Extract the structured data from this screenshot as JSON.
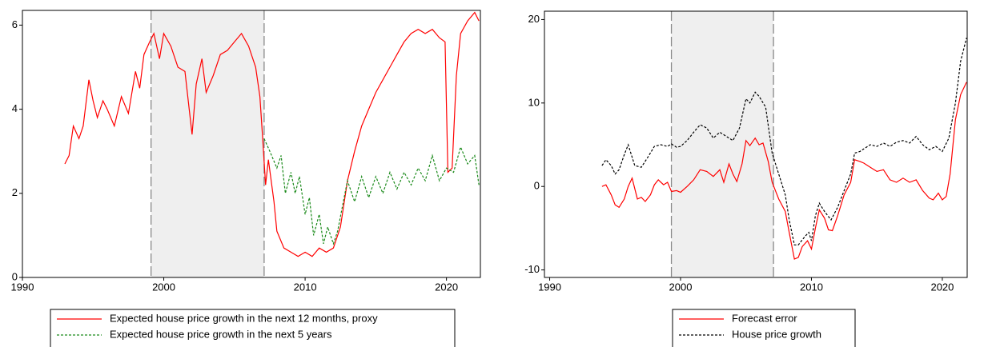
{
  "chart_data": [
    {
      "type": "line",
      "legend": "bottom",
      "shade_color": "#efefef",
      "xlim": [
        1990,
        2022.4
      ],
      "ylim": [
        0,
        6.35
      ],
      "xticks": [
        1990,
        2000,
        2010,
        2020
      ],
      "yticks": [
        0,
        2,
        4,
        6
      ],
      "shaded_region": [
        1999.1,
        2007.1
      ],
      "series": [
        {
          "name": "Expected house price growth in the next 12 months, proxy",
          "color": "#ff0000",
          "dashed": false,
          "x": [
            1993.0,
            1993.3,
            1993.6,
            1994.0,
            1994.3,
            1994.7,
            1995.0,
            1995.3,
            1995.7,
            1996.0,
            1996.5,
            1997.0,
            1997.5,
            1998.0,
            1998.3,
            1998.6,
            1999.0,
            1999.3,
            1999.7,
            2000.0,
            2000.5,
            2001.0,
            2001.5,
            2001.8,
            2002.0,
            2002.3,
            2002.7,
            2003.0,
            2003.5,
            2004.0,
            2004.5,
            2005.0,
            2005.5,
            2006.0,
            2006.5,
            2006.8,
            2007.0,
            2007.2,
            2007.4,
            2007.8,
            2008.0,
            2008.5,
            2009.0,
            2009.5,
            2010.0,
            2010.5,
            2011.0,
            2011.5,
            2012.0,
            2012.5,
            2013.0,
            2013.5,
            2014.0,
            2014.5,
            2015.0,
            2015.5,
            2016.0,
            2016.5,
            2017.0,
            2017.5,
            2018.0,
            2018.5,
            2019.0,
            2019.5,
            2019.9,
            2020.1,
            2020.4,
            2020.7,
            2021.0,
            2021.5,
            2022.0,
            2022.3
          ],
          "values": [
            2.7,
            2.9,
            3.6,
            3.3,
            3.6,
            4.7,
            4.2,
            3.8,
            4.2,
            4.0,
            3.6,
            4.3,
            3.9,
            4.9,
            4.5,
            5.3,
            5.6,
            5.8,
            5.2,
            5.8,
            5.5,
            5.0,
            4.9,
            4.0,
            3.4,
            4.6,
            5.2,
            4.4,
            4.8,
            5.3,
            5.4,
            5.6,
            5.8,
            5.5,
            5.0,
            4.3,
            3.3,
            2.2,
            2.8,
            1.8,
            1.1,
            0.7,
            0.6,
            0.5,
            0.6,
            0.5,
            0.7,
            0.6,
            0.7,
            1.2,
            2.3,
            3.0,
            3.6,
            4.0,
            4.4,
            4.7,
            5.0,
            5.3,
            5.6,
            5.8,
            5.9,
            5.8,
            5.9,
            5.7,
            5.6,
            2.5,
            2.6,
            4.8,
            5.8,
            6.1,
            6.3,
            6.1
          ]
        },
        {
          "name": "Expected house price growth in the next 5 years",
          "color": "#1a8a1a",
          "dashed": true,
          "x": [
            2007.1,
            2007.5,
            2008.0,
            2008.3,
            2008.6,
            2009.0,
            2009.3,
            2009.6,
            2010.0,
            2010.3,
            2010.6,
            2011.0,
            2011.3,
            2011.6,
            2012.0,
            2012.3,
            2012.7,
            2013.0,
            2013.5,
            2014.0,
            2014.5,
            2015.0,
            2015.5,
            2016.0,
            2016.5,
            2017.0,
            2017.5,
            2018.0,
            2018.5,
            2019.0,
            2019.5,
            2020.0,
            2020.5,
            2021.0,
            2021.5,
            2022.0,
            2022.3
          ],
          "values": [
            3.3,
            3.0,
            2.6,
            2.9,
            2.0,
            2.5,
            2.0,
            2.4,
            1.5,
            1.9,
            1.0,
            1.5,
            0.8,
            1.2,
            0.8,
            1.1,
            1.8,
            2.3,
            1.8,
            2.4,
            1.9,
            2.4,
            2.0,
            2.5,
            2.1,
            2.5,
            2.2,
            2.6,
            2.3,
            2.9,
            2.3,
            2.6,
            2.5,
            3.1,
            2.7,
            2.9,
            2.2
          ]
        }
      ]
    },
    {
      "type": "line",
      "legend": "bottom",
      "shade_color": "#efefef",
      "xlim": [
        1989.6,
        2021.9
      ],
      "ylim": [
        -10.9,
        21
      ],
      "xticks": [
        1990,
        2000,
        2010,
        2020
      ],
      "yticks": [
        -10,
        0,
        10,
        20
      ],
      "shaded_region": [
        1999.3,
        2007.1
      ],
      "series": [
        {
          "name": "Forecast error",
          "color": "#ff0000",
          "dashed": false,
          "x": [
            1994.0,
            1994.3,
            1994.7,
            1995.0,
            1995.3,
            1995.7,
            1996.0,
            1996.3,
            1996.7,
            1997.0,
            1997.3,
            1997.7,
            1998.0,
            1998.3,
            1998.7,
            1999.0,
            1999.3,
            1999.7,
            2000.0,
            2000.5,
            2001.0,
            2001.5,
            2002.0,
            2002.5,
            2003.0,
            2003.3,
            2003.7,
            2004.0,
            2004.3,
            2004.7,
            2005.0,
            2005.3,
            2005.7,
            2006.0,
            2006.3,
            2006.7,
            2007.0,
            2007.5,
            2008.0,
            2008.3,
            2008.7,
            2009.0,
            2009.3,
            2009.7,
            2010.0,
            2010.3,
            2010.6,
            2011.0,
            2011.3,
            2011.6,
            2012.0,
            2012.5,
            2013.0,
            2013.3,
            2013.7,
            2014.0,
            2014.5,
            2015.0,
            2015.5,
            2016.0,
            2016.5,
            2017.0,
            2017.5,
            2018.0,
            2018.5,
            2019.0,
            2019.3,
            2019.7,
            2020.0,
            2020.3,
            2020.6,
            2021.0,
            2021.4,
            2021.85
          ],
          "values": [
            0,
            0.2,
            -1,
            -2.2,
            -2.5,
            -1.5,
            0,
            1,
            -1.5,
            -1.3,
            -1.8,
            -1,
            0.2,
            0.8,
            0.2,
            0.5,
            -0.6,
            -0.5,
            -0.7,
            0,
            0.8,
            2.0,
            1.8,
            1.2,
            2.0,
            0.5,
            2.7,
            1.5,
            0.6,
            2.7,
            5.5,
            4.9,
            5.8,
            5.0,
            5.2,
            3.0,
            0.5,
            -1.5,
            -3.0,
            -5.5,
            -8.7,
            -8.5,
            -7.2,
            -6.5,
            -7.5,
            -5,
            -2.8,
            -3.8,
            -5.2,
            -5.3,
            -3.5,
            -1.0,
            0.5,
            3.2,
            3.0,
            2.8,
            2.3,
            1.8,
            2.0,
            0.8,
            0.5,
            1.0,
            0.5,
            0.8,
            -0.5,
            -1.4,
            -1.6,
            -0.8,
            -1.6,
            -1.2,
            1.5,
            8.0,
            11.0,
            12.5
          ]
        },
        {
          "name": "House price growth",
          "color": "#000000",
          "dashed": true,
          "x": [
            1994.0,
            1994.3,
            1994.7,
            1995.0,
            1995.3,
            1995.7,
            1996.0,
            1996.5,
            1997.0,
            1997.5,
            1998.0,
            1998.5,
            1999.0,
            1999.3,
            1999.7,
            2000.0,
            2000.5,
            2001.0,
            2001.5,
            2002.0,
            2002.5,
            2003.0,
            2003.5,
            2004.0,
            2004.5,
            2005.0,
            2005.3,
            2005.7,
            2006.0,
            2006.5,
            2007.0,
            2007.5,
            2008.0,
            2008.3,
            2008.7,
            2009.0,
            2009.5,
            2009.8,
            2010.0,
            2010.3,
            2010.6,
            2011.0,
            2011.5,
            2012.0,
            2012.5,
            2013.0,
            2013.3,
            2013.7,
            2014.0,
            2014.5,
            2015.0,
            2015.5,
            2016.0,
            2016.5,
            2017.0,
            2017.5,
            2018.0,
            2018.5,
            2019.0,
            2019.5,
            2020.0,
            2020.5,
            2021.0,
            2021.4,
            2021.85
          ],
          "values": [
            2.5,
            3.2,
            2.5,
            1.5,
            2.0,
            3.8,
            5.0,
            2.5,
            2.3,
            3.5,
            4.8,
            5.0,
            4.8,
            5.1,
            4.7,
            4.8,
            5.5,
            6.5,
            7.4,
            7.0,
            5.8,
            6.5,
            6.0,
            5.5,
            7.0,
            10.5,
            10.0,
            11.3,
            10.8,
            9.5,
            4.0,
            1.5,
            -1.0,
            -4.0,
            -7.0,
            -7.0,
            -6.0,
            -5.5,
            -6.5,
            -3.5,
            -2.0,
            -3.0,
            -4.0,
            -2.5,
            -0.5,
            1.5,
            4.0,
            4.2,
            4.5,
            5.0,
            4.8,
            5.2,
            4.8,
            5.3,
            5.5,
            5.2,
            6.0,
            5.0,
            4.4,
            4.8,
            4.2,
            5.8,
            10.0,
            15.0,
            17.8
          ]
        }
      ]
    }
  ]
}
